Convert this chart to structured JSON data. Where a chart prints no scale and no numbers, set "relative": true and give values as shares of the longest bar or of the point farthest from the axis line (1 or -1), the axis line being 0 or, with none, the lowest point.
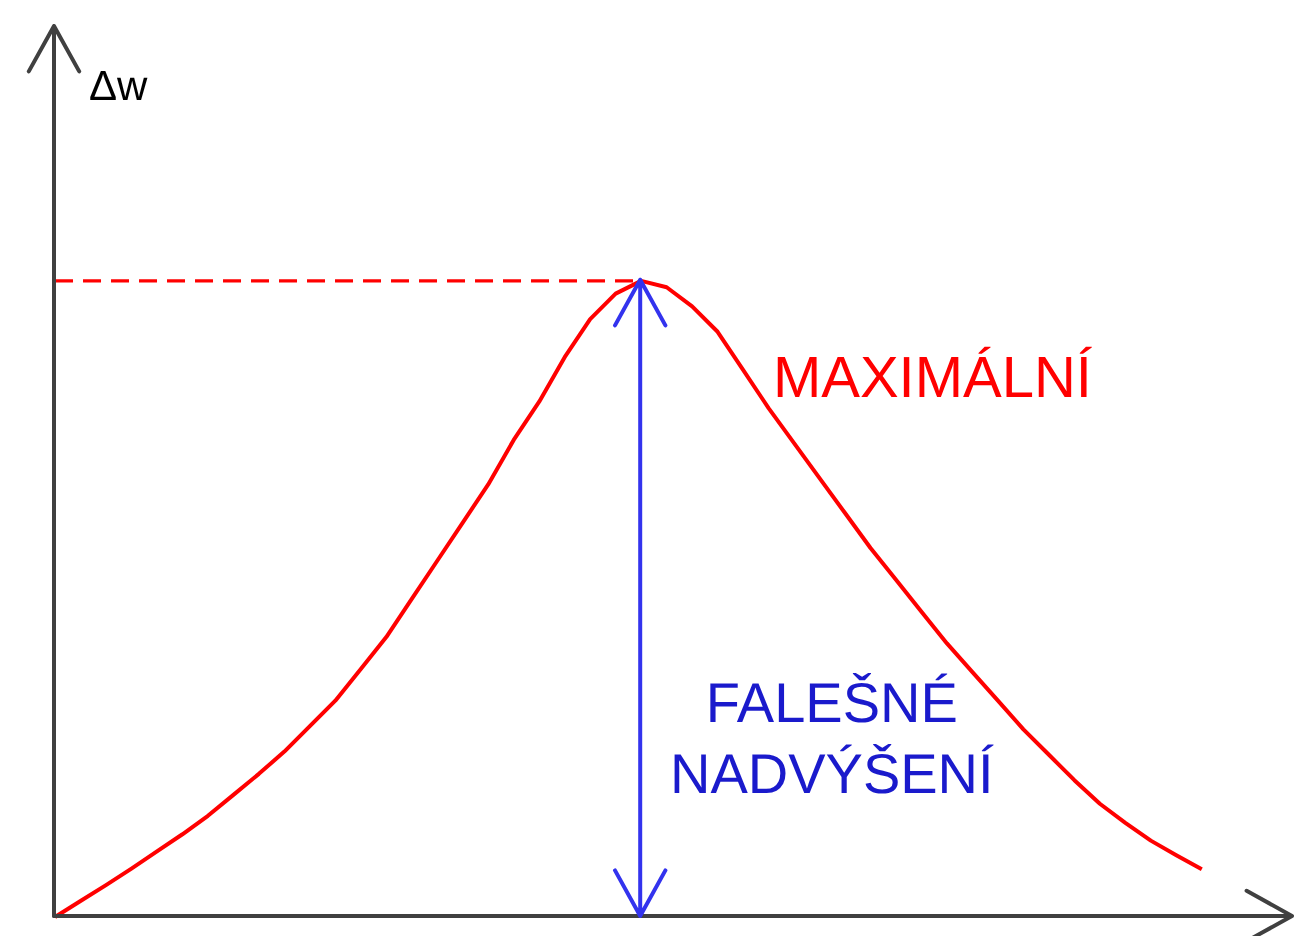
{
  "chart_data": {
    "type": "line",
    "relative": true,
    "ylabel": "Δw",
    "categories": [
      null,
      null,
      null,
      null,
      null,
      null,
      null,
      null,
      null,
      null,
      null,
      null,
      null,
      null,
      null,
      null,
      null,
      null,
      null,
      null,
      null,
      null,
      null,
      null,
      null,
      null,
      null,
      null,
      null,
      null,
      null,
      null,
      null,
      null,
      null,
      null,
      null,
      null,
      null,
      null,
      null,
      null,
      null,
      null,
      null,
      null
    ],
    "series": [
      {
        "name": "MAXIMÁLNÍ",
        "color": "#ff0000",
        "values": [
          0,
          0.025,
          0.05,
          0.076,
          0.103,
          0.13,
          0.159,
          0.192,
          0.225,
          0.26,
          0.3,
          0.34,
          0.39,
          0.44,
          0.5,
          0.56,
          0.62,
          0.68,
          0.75,
          0.81,
          0.88,
          0.94,
          0.98,
          1,
          0.99,
          0.96,
          0.92,
          0.86,
          0.8,
          0.745,
          0.69,
          0.635,
          0.58,
          0.53,
          0.48,
          0.43,
          0.385,
          0.34,
          0.295,
          0.255,
          0.215,
          0.178,
          0.148,
          0.12,
          0.097,
          0.075
        ]
      },
      {
        "color": "#ff0000",
        "line_style": "dashed",
        "values": [
          1,
          1,
          1,
          1,
          1,
          1,
          1,
          1,
          1,
          1,
          1,
          1,
          1,
          1,
          1,
          1,
          1,
          1,
          1,
          1,
          1,
          1,
          1,
          1,
          null,
          null,
          null,
          null,
          null,
          null,
          null,
          null,
          null,
          null,
          null,
          null,
          null,
          null,
          null,
          null,
          null,
          null,
          null,
          null,
          null,
          null
        ]
      }
    ],
    "annotations": [
      "FALEŠNÉ NADVÝŠENÍ"
    ]
  }
}
